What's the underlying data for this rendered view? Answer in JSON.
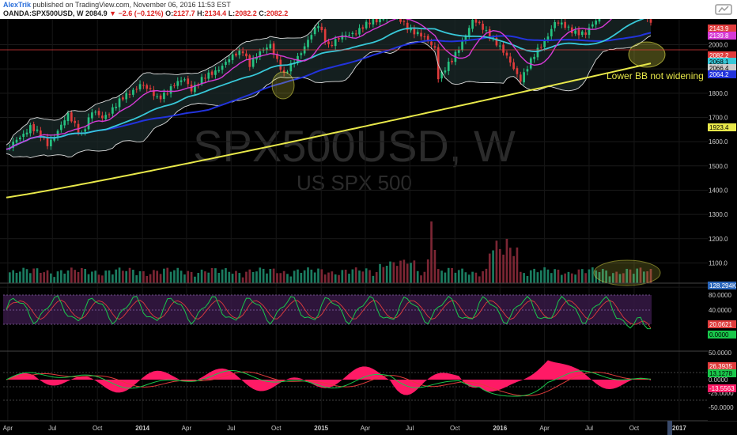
{
  "header": {
    "author": "AlexTrik",
    "published_text": "published on TradingView.com, November 06, 2016 11:53 EST",
    "symbol": "OANDA:SPX500USD, W",
    "last": "2084.9",
    "change": "−2.6 (−0.12%)",
    "open_label": "O:",
    "open": "2127.7",
    "high_label": "H:",
    "high": "2134.4",
    "low_label": "L:",
    "low": "2082.2",
    "close_label": "C:",
    "close": "2082.2"
  },
  "colors": {
    "background": "#000000",
    "candle_up": "#26c281",
    "candle_down": "#e03c3c",
    "bollinger": "#dddddd",
    "ma_fast": "#d63ad6",
    "ma_mid": "#38c8d8",
    "ma_slow": "#2233dd",
    "ma_long": "#e8e84a",
    "annotation": "#e8e84a",
    "rsi": "#19c84b",
    "rsi_signal": "#e03c3c",
    "macd_hist": "#ff1a66"
  },
  "chart_data": {
    "type": "candlestick",
    "symbol_watermark": "SPX500USD, W",
    "subtitle_watermark": "US SPX 500",
    "x_ticks": [
      "Apr",
      "Jul",
      "Oct",
      "2014",
      "Apr",
      "Jul",
      "Oct",
      "2015",
      "Apr",
      "Jul",
      "Oct",
      "2016",
      "Apr",
      "Jul",
      "Oct",
      "2017"
    ],
    "x_tick_dates": [
      "2013-04",
      "2013-07",
      "2013-10",
      "2014-01",
      "2014-04",
      "2014-07",
      "2014-10",
      "2015-01",
      "2015-04",
      "2015-07",
      "2015-10",
      "2016-01",
      "2016-04",
      "2016-07",
      "2016-10",
      "2017-01"
    ],
    "price_axis": {
      "ticks": [
        2000,
        1900,
        1800,
        1700,
        1600,
        1500,
        1400,
        1300,
        1200,
        1100,
        1000
      ],
      "tick_labels": [
        "2000.0",
        "1900.0",
        "1800.0",
        "1700.0",
        "1600.0",
        "1500.0",
        "1400.0",
        "1300.0",
        "1200.0",
        "1100.0",
        "1000.0"
      ],
      "range": [
        950,
        2185
      ]
    },
    "price_tags": [
      {
        "label": "2143.9",
        "value": 2143.9,
        "color": "#e03c3c"
      },
      {
        "label": "2139.8",
        "value": 2139.8,
        "color": "#d63ad6"
      },
      {
        "label": "2082.2",
        "value": 2082.2,
        "color": "#e03c3c"
      },
      {
        "label": "2068.1",
        "value": 2068.1,
        "color": "#38c8d8"
      },
      {
        "label": "2066.4",
        "value": 2066.4,
        "color": "#cccccc"
      },
      {
        "label": "2064.2",
        "value": 2064.2,
        "color": "#2233dd"
      },
      {
        "label": "1923.4",
        "value": 1923.4,
        "color": "#e8e84a"
      }
    ],
    "volume_tag": "128.294K",
    "annotation": "Lower BB not widening",
    "price_path": [
      [
        "2013-03-29",
        1560
      ],
      [
        "2013-05-17",
        1665
      ],
      [
        "2013-06-21",
        1590
      ],
      [
        "2013-08-02",
        1705
      ],
      [
        "2013-08-30",
        1635
      ],
      [
        "2013-09-20",
        1720
      ],
      [
        "2013-10-11",
        1700
      ],
      [
        "2013-12-27",
        1840
      ],
      [
        "2014-01-31",
        1780
      ],
      [
        "2014-03-28",
        1860
      ],
      [
        "2014-04-11",
        1820
      ],
      [
        "2014-07-25",
        1980
      ],
      [
        "2014-08-08",
        1920
      ],
      [
        "2014-09-19",
        2005
      ],
      [
        "2014-10-17",
        1870
      ],
      [
        "2014-12-26",
        2080
      ],
      [
        "2015-01-16",
        2000
      ],
      [
        "2015-05-22",
        2130
      ],
      [
        "2015-08-21",
        1990
      ],
      [
        "2015-08-28",
        1870
      ],
      [
        "2015-09-25",
        1930
      ],
      [
        "2015-11-06",
        2100
      ],
      [
        "2015-12-18",
        2030
      ],
      [
        "2016-02-12",
        1860
      ],
      [
        "2016-04-22",
        2090
      ],
      [
        "2016-06-24",
        2040
      ],
      [
        "2016-08-12",
        2185
      ],
      [
        "2016-10-21",
        2140
      ],
      [
        "2016-11-04",
        2084
      ]
    ],
    "rsi": {
      "levels": [
        80,
        40,
        20
      ],
      "tick_labels": [
        "80.0000",
        "40.0000"
      ],
      "tags": [
        {
          "label": "20.0621",
          "color": "#e03c3c"
        },
        {
          "label": "0.0000",
          "color": "#19c84b"
        }
      ]
    },
    "macd": {
      "tick_labels": [
        "50.0000",
        "25.0000",
        "0.0000",
        "-25.0000",
        "-50.0000"
      ],
      "tags": [
        {
          "label": "26.3935",
          "color": "#e03c3c"
        },
        {
          "label": "13.1278",
          "color": "#19c84b"
        },
        {
          "label": "-13.5563",
          "color": "#ff1a66"
        }
      ]
    }
  }
}
